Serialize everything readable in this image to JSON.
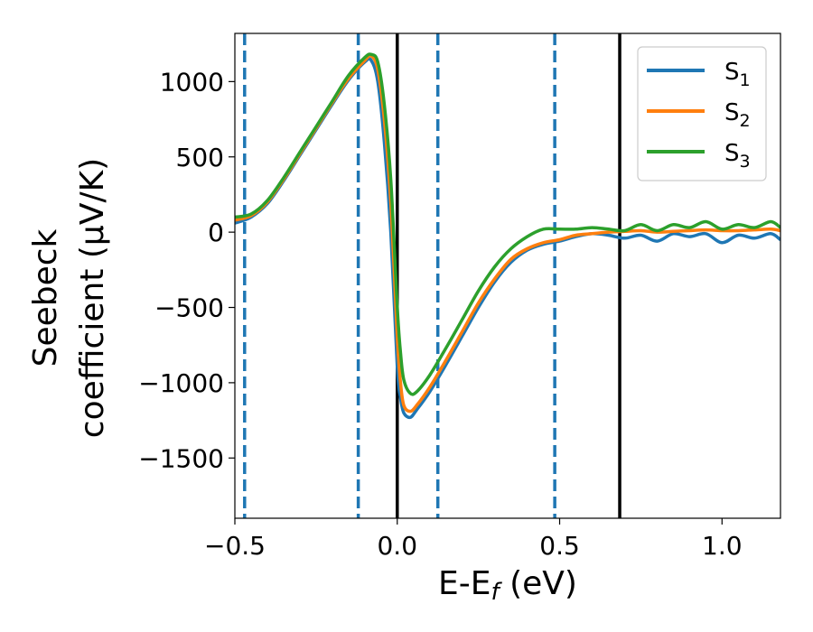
{
  "chart_data": {
    "type": "line",
    "xlabel_main": "E-E",
    "xlabel_sub": "f",
    "xlabel_tail": " (eV)",
    "ylabel_line1": "Seebeck",
    "ylabel_line2": "coefficient  (μV/K)",
    "xlim": [
      -0.5,
      1.18
    ],
    "ylim": [
      -1900,
      1320
    ],
    "x_ticks": [
      -0.5,
      0.0,
      0.5,
      1.0
    ],
    "x_tick_labels": [
      "−0.5",
      "0.0",
      "0.5",
      "1.0"
    ],
    "y_ticks": [
      1000,
      500,
      0,
      -500,
      -1000,
      -1500
    ],
    "y_tick_labels": [
      "1000",
      "500",
      "0",
      "−500",
      "−1000",
      "−1500"
    ],
    "vlines_dashed": [
      -0.47,
      -0.12,
      0.125,
      0.485
    ],
    "vlines_solid": [
      0.0,
      0.685
    ],
    "vline_dashed_color": "#1f77b4",
    "vline_solid_color": "#000000",
    "legend_position": "top-right",
    "series": [
      {
        "name": "S",
        "sub": "1",
        "color": "#1f77b4",
        "x": [
          -0.5,
          -0.45,
          -0.4,
          -0.35,
          -0.3,
          -0.25,
          -0.2,
          -0.15,
          -0.1,
          -0.08,
          -0.06,
          -0.04,
          -0.02,
          0.0,
          0.01,
          0.02,
          0.04,
          0.06,
          0.1,
          0.15,
          0.2,
          0.25,
          0.3,
          0.35,
          0.4,
          0.45,
          0.5,
          0.55,
          0.6,
          0.65,
          0.7,
          0.75,
          0.8,
          0.85,
          0.9,
          0.95,
          1.0,
          1.05,
          1.1,
          1.15,
          1.18
        ],
        "y": [
          60,
          100,
          190,
          340,
          510,
          680,
          850,
          1010,
          1130,
          1140,
          1000,
          600,
          0,
          -900,
          -1100,
          -1200,
          -1230,
          -1180,
          -1060,
          -880,
          -690,
          -500,
          -330,
          -200,
          -120,
          -80,
          -60,
          -30,
          -10,
          -20,
          -40,
          -20,
          -60,
          -10,
          -30,
          -10,
          -70,
          -20,
          -40,
          -10,
          -50
        ]
      },
      {
        "name": "S",
        "sub": "2",
        "color": "#ff7f0e",
        "x": [
          -0.5,
          -0.45,
          -0.4,
          -0.35,
          -0.3,
          -0.25,
          -0.2,
          -0.15,
          -0.1,
          -0.08,
          -0.06,
          -0.04,
          -0.02,
          0.0,
          0.01,
          0.02,
          0.04,
          0.06,
          0.1,
          0.15,
          0.2,
          0.25,
          0.3,
          0.35,
          0.4,
          0.45,
          0.5,
          0.55,
          0.6,
          0.65,
          0.7,
          0.75,
          0.8,
          0.85,
          0.9,
          0.95,
          1.0,
          1.05,
          1.1,
          1.15,
          1.18
        ],
        "y": [
          80,
          110,
          200,
          350,
          520,
          690,
          860,
          1020,
          1140,
          1170,
          1080,
          750,
          200,
          -700,
          -1000,
          -1150,
          -1190,
          -1150,
          -1030,
          -850,
          -660,
          -470,
          -310,
          -180,
          -110,
          -70,
          -50,
          -20,
          -10,
          0,
          5,
          10,
          0,
          5,
          10,
          15,
          10,
          10,
          15,
          20,
          10
        ]
      },
      {
        "name": "S",
        "sub": "3",
        "color": "#2ca02c",
        "x": [
          -0.5,
          -0.45,
          -0.4,
          -0.35,
          -0.3,
          -0.25,
          -0.2,
          -0.15,
          -0.1,
          -0.08,
          -0.06,
          -0.04,
          -0.02,
          0.0,
          0.01,
          0.02,
          0.04,
          0.06,
          0.1,
          0.15,
          0.2,
          0.25,
          0.3,
          0.35,
          0.4,
          0.45,
          0.5,
          0.55,
          0.6,
          0.65,
          0.7,
          0.75,
          0.8,
          0.85,
          0.9,
          0.95,
          1.0,
          1.05,
          1.1,
          1.15,
          1.18
        ],
        "y": [
          100,
          120,
          210,
          360,
          530,
          700,
          870,
          1040,
          1160,
          1180,
          1130,
          850,
          350,
          -500,
          -800,
          -980,
          -1070,
          -1060,
          -950,
          -770,
          -580,
          -390,
          -230,
          -110,
          -30,
          20,
          20,
          20,
          30,
          20,
          10,
          50,
          10,
          50,
          30,
          70,
          20,
          50,
          30,
          70,
          30
        ]
      }
    ]
  }
}
